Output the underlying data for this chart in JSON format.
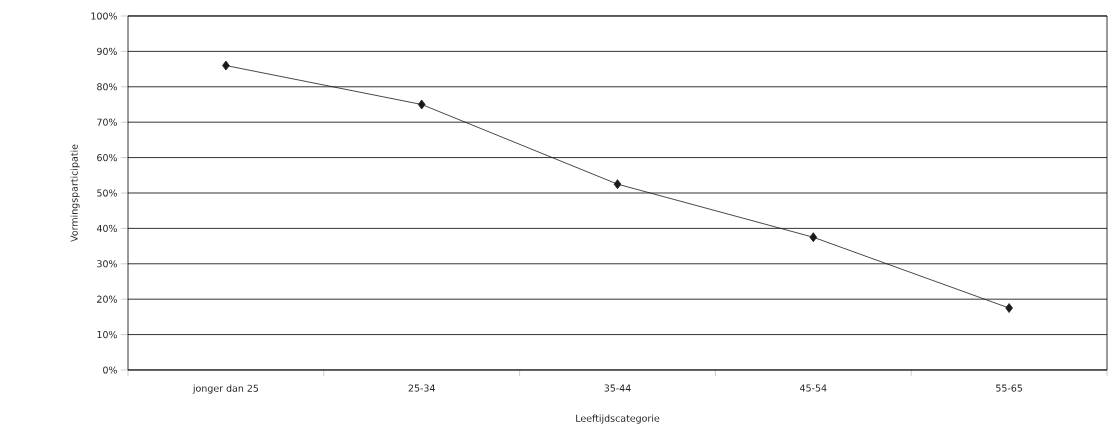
{
  "chart_data": {
    "type": "line",
    "xlabel": "Leeftijdscategorie",
    "ylabel": "Vormingsparticipatie",
    "categories": [
      "jonger dan 25",
      "25-34",
      "35-44",
      "45-54",
      "55-65"
    ],
    "values": [
      86,
      75,
      52.5,
      37.5,
      17.5
    ],
    "color": "#1a1a1a",
    "marker": "diamond",
    "ylim": [
      0,
      100
    ],
    "yticks": [
      {
        "value": 0,
        "label": "0%"
      },
      {
        "value": 10,
        "label": "10%"
      },
      {
        "value": 20,
        "label": "20%"
      },
      {
        "value": 30,
        "label": "30%"
      },
      {
        "value": 40,
        "label": "40%"
      },
      {
        "value": 50,
        "label": "50%"
      },
      {
        "value": 60,
        "label": "60%"
      },
      {
        "value": 70,
        "label": "70%"
      },
      {
        "value": 80,
        "label": "80%"
      },
      {
        "value": 90,
        "label": "90%"
      },
      {
        "value": 100,
        "label": "100%"
      }
    ],
    "grid": "y"
  }
}
